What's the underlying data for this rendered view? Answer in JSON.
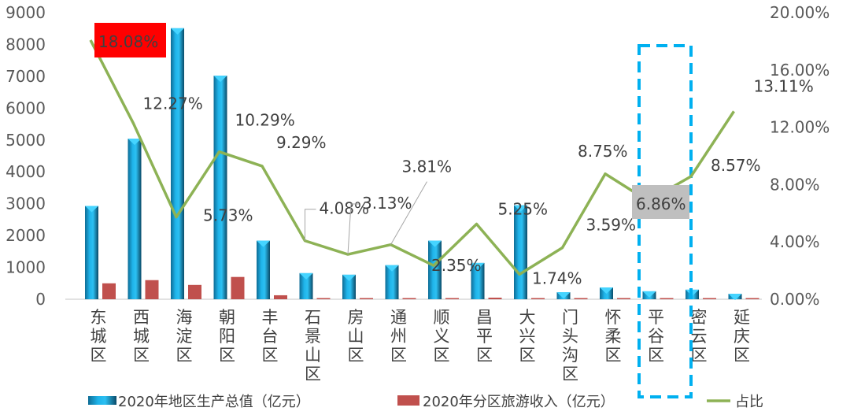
{
  "chart_data": {
    "type": "bar+line",
    "categories": [
      "东城区",
      "西城区",
      "海淀区",
      "朝阳区",
      "丰台区",
      "石景山区",
      "房山区",
      "通州区",
      "顺义区",
      "昌平区",
      "大兴区",
      "门头沟区",
      "怀柔区",
      "平谷区",
      "密云区",
      "延庆区"
    ],
    "series": [
      {
        "name": "2020年地区生产总值（亿元）",
        "type": "bar",
        "axis": "left",
        "color": "#1fa7dc",
        "values": [
          2930,
          5040,
          8510,
          7020,
          1840,
          820,
          770,
          1070,
          1840,
          1140,
          2950,
          220,
          370,
          250,
          300,
          170
        ]
      },
      {
        "name": "2020年分区旅游收入（亿元）",
        "type": "bar",
        "axis": "left",
        "color": "#c0504d",
        "values": [
          500,
          600,
          450,
          700,
          125,
          20,
          5,
          30,
          30,
          50,
          20,
          5,
          25,
          5,
          5,
          5
        ]
      },
      {
        "name": "占比",
        "type": "line",
        "axis": "right",
        "color": "#8db255",
        "values": [
          18.08,
          12.27,
          5.73,
          10.29,
          9.29,
          4.08,
          3.13,
          3.81,
          2.35,
          5.25,
          1.74,
          3.59,
          8.75,
          6.86,
          8.57,
          13.11
        ],
        "labels": [
          "18.08%",
          "12.27%",
          "5.73%",
          "10.29%",
          "9.29%",
          "4.08%",
          "3.13%",
          "3.81%",
          "2.35%",
          "5.25%",
          "1.74%",
          "3.59%",
          "8.75%",
          "6.86%",
          "8.57%",
          "13.11%"
        ]
      }
    ],
    "left_axis": {
      "ticks": [
        "0",
        "1000",
        "2000",
        "3000",
        "4000",
        "5000",
        "6000",
        "7000",
        "8000",
        "9000"
      ],
      "range": [
        0,
        9000
      ]
    },
    "right_axis": {
      "ticks": [
        "0.00%",
        "4.00%",
        "8.00%",
        "12.00%",
        "16.00%",
        "20.00%"
      ],
      "range": [
        0,
        20
      ]
    },
    "highlight": {
      "category": "平谷区",
      "style": "dashed box",
      "color": "#00b0f0",
      "label_bg": "#bfbfbf"
    },
    "max_label_bg": "#ff0000",
    "legend": {
      "placement": "bottom"
    },
    "grid": false
  }
}
